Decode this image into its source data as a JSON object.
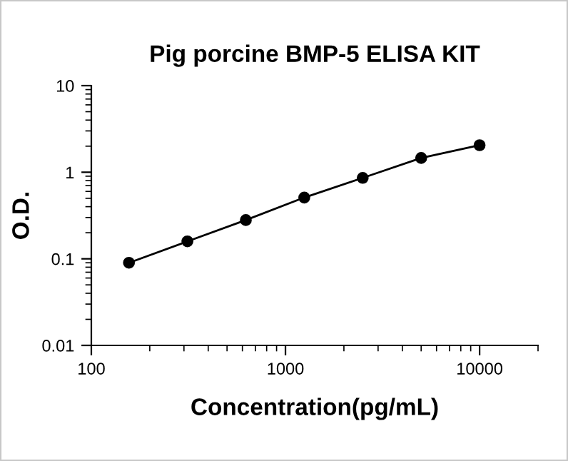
{
  "chart_data": {
    "type": "line",
    "title": "Pig porcine BMP-5 ELISA KIT",
    "xlabel": "Concentration(pg/mL)",
    "ylabel": "O.D.",
    "x": [
      156.25,
      312.5,
      625,
      1250,
      2500,
      5000,
      10000
    ],
    "series": [
      {
        "color": "#000000",
        "values": [
          0.09,
          0.159,
          0.28,
          0.51,
          0.86,
          1.46,
          2.05
        ]
      }
    ],
    "log": "xy",
    "xlim": [
      100,
      20000
    ],
    "ylim": [
      0.01,
      10
    ],
    "xticks": [
      100,
      1000,
      10000
    ],
    "yticks": [
      0.01,
      0.1,
      1,
      10
    ],
    "marker": "circle",
    "line_style": "solid",
    "grid": false
  }
}
